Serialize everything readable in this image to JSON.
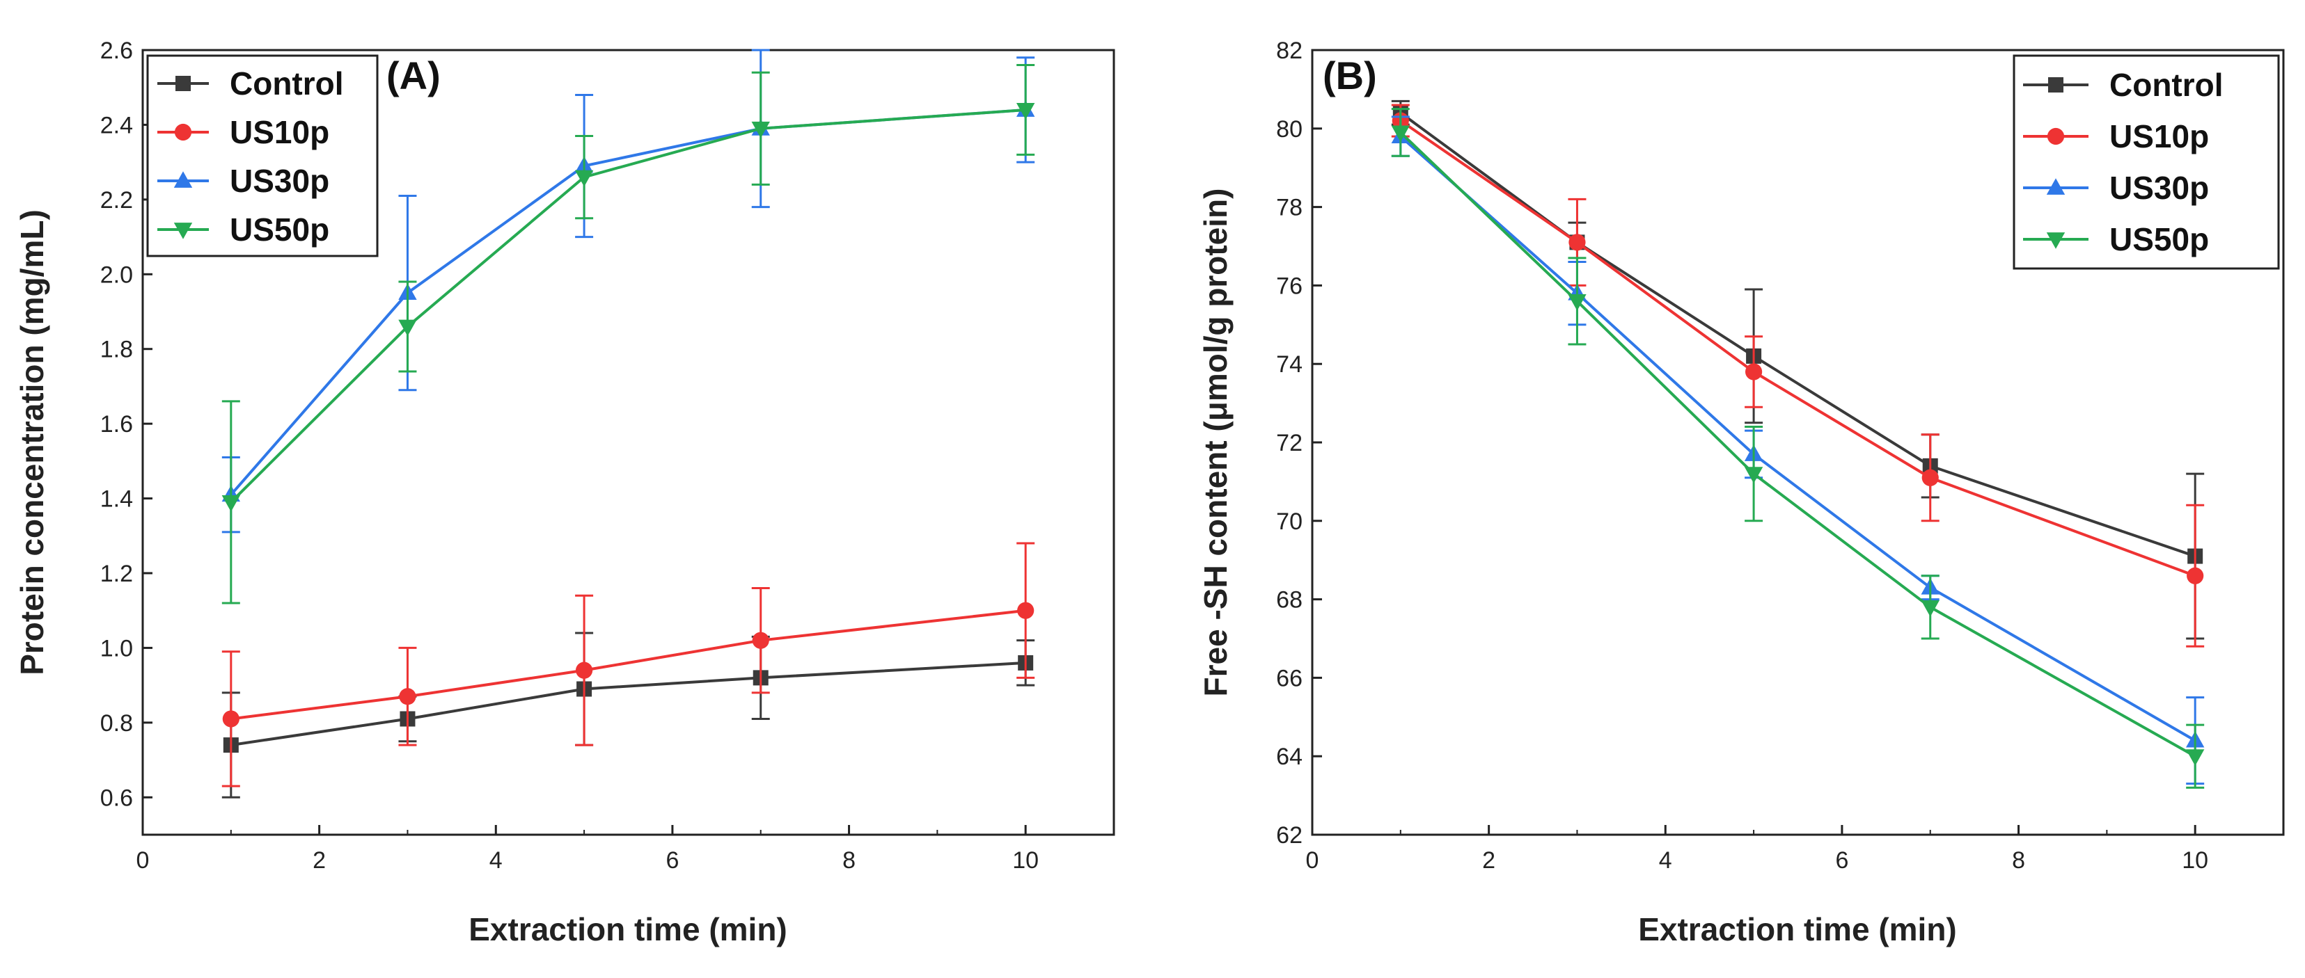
{
  "colors": {
    "Control": "#3a3a3a",
    "US10p": "#ee3333",
    "US30p": "#2f78e8",
    "US50p": "#26aa52"
  },
  "chart_data": [
    {
      "type": "line",
      "panel_label": "(A)",
      "title": "",
      "xlabel": "Extraction time (min)",
      "ylabel": "Protein concentration (mg/mL)",
      "xlim": [
        0,
        11
      ],
      "ylim": [
        0.5,
        2.6
      ],
      "xticks": [
        0,
        2,
        4,
        6,
        8,
        10
      ],
      "yticks": [
        0.6,
        0.8,
        1.0,
        1.2,
        1.4,
        1.6,
        1.8,
        2.0,
        2.2,
        2.4,
        2.6
      ],
      "xtick_labels": [
        "0",
        "2",
        "4",
        "6",
        "8",
        "10"
      ],
      "ytick_labels": [
        "0.6",
        "0.8",
        "1.0",
        "1.2",
        "1.4",
        "1.6",
        "1.8",
        "2.0",
        "2.2",
        "2.4",
        "2.6"
      ],
      "legend_position": "top-left",
      "x": [
        1,
        3,
        5,
        7,
        10
      ],
      "series": [
        {
          "name": "Control",
          "marker": "square",
          "values": [
            0.74,
            0.81,
            0.89,
            0.92,
            0.96
          ],
          "errors": [
            0.14,
            0.06,
            0.15,
            0.11,
            0.06
          ]
        },
        {
          "name": "US10p",
          "marker": "circle",
          "values": [
            0.81,
            0.87,
            0.94,
            1.02,
            1.1
          ],
          "errors": [
            0.18,
            0.13,
            0.2,
            0.14,
            0.18
          ]
        },
        {
          "name": "US30p",
          "marker": "triangle-up",
          "values": [
            1.41,
            1.95,
            2.29,
            2.39,
            2.44
          ],
          "errors": [
            0.1,
            0.26,
            0.19,
            0.21,
            0.14
          ]
        },
        {
          "name": "US50p",
          "marker": "triangle-down",
          "values": [
            1.39,
            1.86,
            2.26,
            2.39,
            2.44
          ],
          "errors": [
            0.27,
            0.12,
            0.11,
            0.15,
            0.12
          ]
        }
      ]
    },
    {
      "type": "line",
      "panel_label": "(B)",
      "title": "",
      "xlabel": "Extraction time (min)",
      "ylabel": "Free -SH content (μmol/g protein)",
      "xlim": [
        0,
        11
      ],
      "ylim": [
        62,
        82
      ],
      "xticks": [
        0,
        2,
        4,
        6,
        8,
        10
      ],
      "yticks": [
        62,
        64,
        66,
        68,
        70,
        72,
        74,
        76,
        78,
        80,
        82
      ],
      "xtick_labels": [
        "0",
        "2",
        "4",
        "6",
        "8",
        "10"
      ],
      "ytick_labels": [
        "62",
        "64",
        "66",
        "68",
        "70",
        "72",
        "74",
        "76",
        "78",
        "80",
        "82"
      ],
      "legend_position": "top-right",
      "x": [
        1,
        3,
        5,
        7,
        10
      ],
      "series": [
        {
          "name": "Control",
          "marker": "square",
          "values": [
            80.4,
            77.1,
            74.2,
            71.4,
            69.1
          ],
          "errors": [
            0.3,
            0.5,
            1.7,
            0.8,
            2.1
          ]
        },
        {
          "name": "US10p",
          "marker": "circle",
          "values": [
            80.2,
            77.1,
            73.8,
            71.1,
            68.6
          ],
          "errors": [
            0.4,
            1.1,
            0.9,
            1.1,
            1.8
          ]
        },
        {
          "name": "US30p",
          "marker": "triangle-up",
          "values": [
            79.8,
            75.8,
            71.7,
            68.3,
            64.4
          ],
          "errors": [
            0.5,
            0.8,
            0.6,
            0.3,
            1.1
          ]
        },
        {
          "name": "US50p",
          "marker": "triangle-down",
          "values": [
            79.9,
            75.6,
            71.2,
            67.8,
            64.0
          ],
          "errors": [
            0.6,
            1.1,
            1.2,
            0.8,
            0.8
          ]
        }
      ]
    }
  ]
}
